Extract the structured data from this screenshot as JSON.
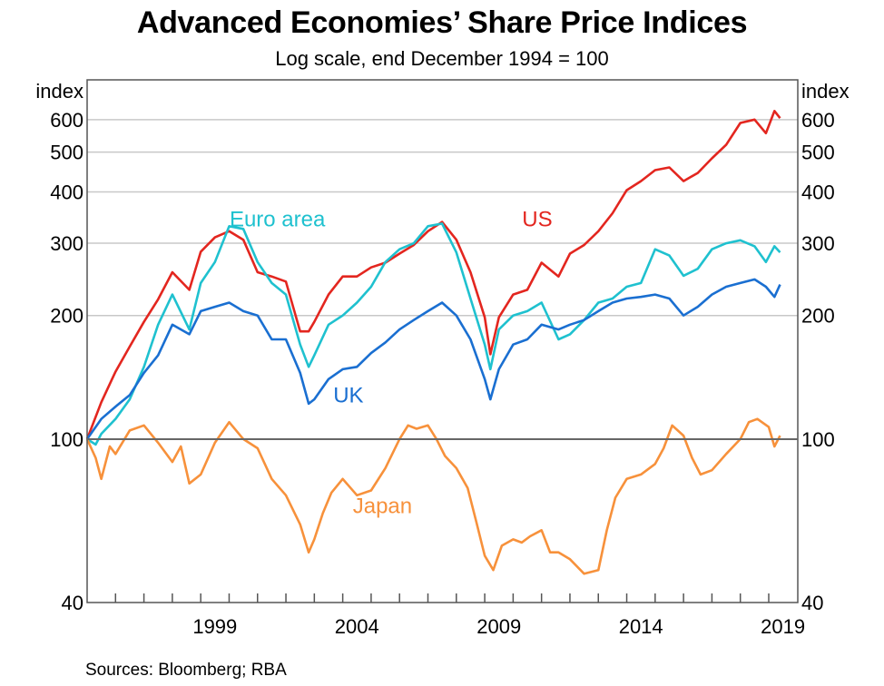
{
  "chart_data": {
    "type": "line",
    "title": "Advanced Economies’ Share Price Indices",
    "subtitle": "Log scale, end December 1994 = 100",
    "source": "Sources: Bloomberg; RBA",
    "y_scale": "log",
    "ylabel_left": "index",
    "ylabel_right": "index",
    "ylim": [
      40,
      750
    ],
    "xlim": [
      1995.0,
      2020.0
    ],
    "y_ticks": [
      40,
      100,
      200,
      300,
      400,
      500,
      600
    ],
    "y_tick_labels": [
      "40",
      "100",
      "200",
      "300",
      "400",
      "500",
      "600"
    ],
    "x_tick_labels": [
      {
        "label": "1999",
        "year": 1999
      },
      {
        "label": "2004",
        "year": 2004
      },
      {
        "label": "2009",
        "year": 2009
      },
      {
        "label": "2014",
        "year": 2014
      },
      {
        "label": "2019",
        "year": 2019
      }
    ],
    "x_minor_ticks_yearly_from": 1996,
    "x_minor_ticks_yearly_to": 2019,
    "reference_line": 100,
    "grid": true,
    "series": [
      {
        "name": "US",
        "color": "#e3261f",
        "label_pos": {
          "x": 2010.85,
          "y": 330
        },
        "x": [
          1995.0,
          1995.5,
          1996.0,
          1996.5,
          1997.0,
          1997.5,
          1998.0,
          1998.6,
          1999.0,
          1999.5,
          2000.0,
          2000.5,
          2001.0,
          2001.5,
          2002.0,
          2002.5,
          2002.8,
          2003.0,
          2003.5,
          2004.0,
          2004.5,
          2005.0,
          2005.5,
          2006.0,
          2006.5,
          2007.0,
          2007.5,
          2008.0,
          2008.5,
          2009.0,
          2009.2,
          2009.5,
          2010.0,
          2010.5,
          2011.0,
          2011.6,
          2012.0,
          2012.5,
          2013.0,
          2013.5,
          2014.0,
          2014.5,
          2015.0,
          2015.5,
          2016.0,
          2016.5,
          2017.0,
          2017.5,
          2018.0,
          2018.5,
          2018.9,
          2019.2,
          2019.4
        ],
        "values": [
          100,
          123,
          146,
          168,
          193,
          219,
          255,
          231,
          286,
          310,
          321,
          306,
          255,
          249,
          242,
          183,
          183,
          193,
          225,
          249,
          249,
          262,
          269,
          283,
          297,
          321,
          338,
          306,
          255,
          198,
          161,
          198,
          225,
          231,
          269,
          249,
          283,
          297,
          321,
          355,
          404,
          425,
          452,
          459,
          425,
          445,
          483,
          521,
          589,
          600,
          556,
          630,
          605
        ]
      },
      {
        "name": "Euro area",
        "color": "#1fc1cf",
        "label_pos": {
          "x": 2001.7,
          "y": 330
        },
        "x": [
          1995.0,
          1995.3,
          1995.5,
          1996.0,
          1996.5,
          1997.0,
          1997.5,
          1998.0,
          1998.6,
          1999.0,
          1999.5,
          2000.0,
          2000.5,
          2001.0,
          2001.5,
          2002.0,
          2002.5,
          2002.8,
          2003.0,
          2003.5,
          2004.0,
          2004.5,
          2005.0,
          2005.5,
          2006.0,
          2006.5,
          2007.0,
          2007.5,
          2008.0,
          2008.5,
          2009.0,
          2009.2,
          2009.5,
          2010.0,
          2010.5,
          2011.0,
          2011.6,
          2012.0,
          2012.5,
          2013.0,
          2013.5,
          2014.0,
          2014.5,
          2015.0,
          2015.5,
          2016.0,
          2016.5,
          2017.0,
          2017.5,
          2018.0,
          2018.5,
          2018.9,
          2019.2,
          2019.4
        ],
        "values": [
          100,
          97,
          103,
          112,
          125,
          150,
          190,
          225,
          185,
          240,
          270,
          330,
          325,
          270,
          240,
          225,
          170,
          150,
          160,
          190,
          200,
          215,
          235,
          270,
          290,
          300,
          330,
          335,
          285,
          220,
          170,
          148,
          185,
          200,
          205,
          215,
          175,
          180,
          195,
          215,
          220,
          235,
          240,
          290,
          280,
          250,
          260,
          290,
          300,
          305,
          295,
          270,
          295,
          285
        ]
      },
      {
        "name": "UK",
        "color": "#1a6fd1",
        "label_pos": {
          "x": 2004.2,
          "y": 123
        },
        "x": [
          1995.0,
          1995.5,
          1996.0,
          1996.5,
          1997.0,
          1997.5,
          1998.0,
          1998.6,
          1999.0,
          1999.5,
          2000.0,
          2000.5,
          2001.0,
          2001.5,
          2002.0,
          2002.5,
          2002.8,
          2003.0,
          2003.5,
          2004.0,
          2004.5,
          2005.0,
          2005.5,
          2006.0,
          2006.5,
          2007.0,
          2007.5,
          2008.0,
          2008.5,
          2009.0,
          2009.2,
          2009.5,
          2010.0,
          2010.5,
          2011.0,
          2011.6,
          2012.0,
          2012.5,
          2013.0,
          2013.5,
          2014.0,
          2014.5,
          2015.0,
          2015.5,
          2016.0,
          2016.5,
          2017.0,
          2017.5,
          2018.0,
          2018.5,
          2018.9,
          2019.2,
          2019.4
        ],
        "values": [
          100,
          112,
          120,
          128,
          145,
          160,
          190,
          180,
          205,
          210,
          215,
          205,
          200,
          175,
          175,
          145,
          122,
          125,
          140,
          148,
          150,
          162,
          172,
          185,
          195,
          205,
          215,
          200,
          175,
          140,
          125,
          148,
          170,
          175,
          190,
          185,
          190,
          195,
          205,
          215,
          220,
          222,
          225,
          220,
          200,
          210,
          225,
          235,
          240,
          245,
          235,
          222,
          238
        ]
      },
      {
        "name": "Japan",
        "color": "#f7913b",
        "label_pos": {
          "x": 2005.4,
          "y": 66
        },
        "x": [
          1995.0,
          1995.3,
          1995.5,
          1995.8,
          1996.0,
          1996.5,
          1997.0,
          1997.5,
          1998.0,
          1998.3,
          1998.6,
          1999.0,
          1999.5,
          2000.0,
          2000.5,
          2001.0,
          2001.5,
          2002.0,
          2002.5,
          2002.8,
          2003.0,
          2003.3,
          2003.6,
          2004.0,
          2004.5,
          2005.0,
          2005.5,
          2006.0,
          2006.3,
          2006.6,
          2007.0,
          2007.3,
          2007.6,
          2008.0,
          2008.4,
          2008.7,
          2009.0,
          2009.3,
          2009.6,
          2010.0,
          2010.3,
          2010.6,
          2011.0,
          2011.3,
          2011.6,
          2012.0,
          2012.5,
          2013.0,
          2013.3,
          2013.6,
          2014.0,
          2014.5,
          2015.0,
          2015.3,
          2015.6,
          2016.0,
          2016.3,
          2016.6,
          2017.0,
          2017.5,
          2018.0,
          2018.3,
          2018.6,
          2019.0,
          2019.2,
          2019.4
        ],
        "values": [
          100,
          90,
          80,
          96,
          92,
          105,
          108,
          98,
          88,
          96,
          78,
          82,
          98,
          110,
          100,
          95,
          80,
          73,
          62,
          53,
          57,
          66,
          74,
          80,
          73,
          75,
          85,
          100,
          108,
          106,
          108,
          100,
          91,
          85,
          76,
          63,
          52,
          48,
          55,
          57,
          56,
          58,
          60,
          53,
          53,
          51,
          47,
          48,
          60,
          72,
          80,
          82,
          87,
          95,
          108,
          102,
          90,
          82,
          84,
          92,
          100,
          110,
          112,
          107,
          96,
          102
        ]
      }
    ]
  }
}
